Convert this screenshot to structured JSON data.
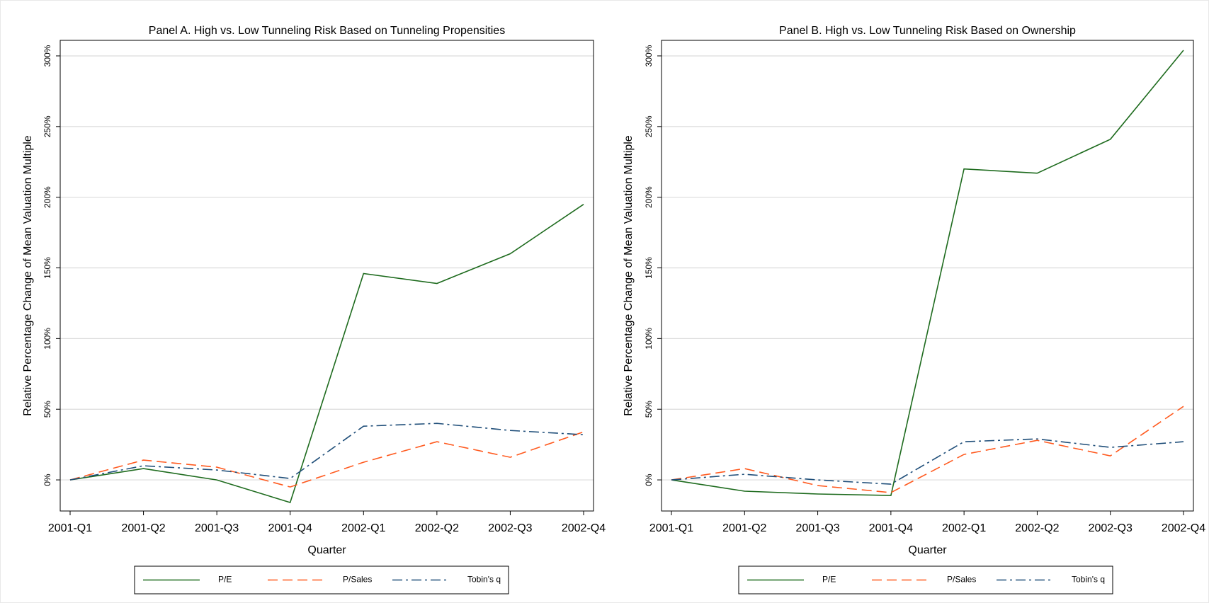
{
  "chart_data": [
    {
      "type": "line",
      "title": "Panel A. High vs. Low Tunneling Risk Based on Tunneling Propensities",
      "x_label": "Quarter",
      "y_label": "Relative Percentage Change of Mean Valuation Multiple",
      "categories": [
        "2001-Q1",
        "2001-Q2",
        "2001-Q3",
        "2001-Q4",
        "2002-Q1",
        "2002-Q2",
        "2002-Q3",
        "2002-Q4"
      ],
      "series": [
        {
          "name": "P/E",
          "color": "#1e6b1e",
          "dash": "solid",
          "values": [
            0,
            8,
            0,
            -16,
            146,
            139,
            160,
            195
          ]
        },
        {
          "name": "P/Sales",
          "color": "#ff5a1f",
          "dash": "dash",
          "values": [
            0,
            14,
            9,
            -5,
            12.5,
            27,
            16,
            34
          ]
        },
        {
          "name": "Tobin's q",
          "color": "#1f4e79",
          "dash": "dashdot",
          "values": [
            0,
            10,
            7,
            1,
            38,
            40,
            35,
            32
          ]
        }
      ],
      "ylim": [
        -22,
        311
      ],
      "yticks": [
        {
          "value": 0,
          "label": "0%"
        },
        {
          "value": 50,
          "label": "50%"
        },
        {
          "value": 100,
          "label": "100%"
        },
        {
          "value": 150,
          "label": "150%"
        },
        {
          "value": 200,
          "label": "200%"
        },
        {
          "value": 250,
          "label": "250%"
        },
        {
          "value": 300,
          "label": "300%"
        }
      ],
      "grid": true,
      "legend": "bottom"
    },
    {
      "type": "line",
      "title": "Panel B. High vs. Low Tunneling Risk Based on Ownership",
      "x_label": "Quarter",
      "y_label": "Relative Percentage Change of Mean Valuation Multiple",
      "categories": [
        "2001-Q1",
        "2001-Q2",
        "2001-Q3",
        "2001-Q4",
        "2002-Q1",
        "2002-Q2",
        "2002-Q3",
        "2002-Q4"
      ],
      "series": [
        {
          "name": "P/E",
          "color": "#1e6b1e",
          "dash": "solid",
          "values": [
            0,
            -8,
            -10,
            -11,
            220,
            217,
            241,
            304
          ]
        },
        {
          "name": "P/Sales",
          "color": "#ff5a1f",
          "dash": "dash",
          "values": [
            0,
            8,
            -4,
            -9,
            18,
            28,
            17,
            52
          ]
        },
        {
          "name": "Tobin's q",
          "color": "#1f4e79",
          "dash": "dashdot",
          "values": [
            0,
            4,
            0,
            -3,
            27,
            29,
            23,
            27
          ]
        }
      ],
      "ylim": [
        -22,
        311
      ],
      "yticks": [
        {
          "value": 0,
          "label": "0%"
        },
        {
          "value": 50,
          "label": "50%"
        },
        {
          "value": 100,
          "label": "100%"
        },
        {
          "value": 150,
          "label": "150%"
        },
        {
          "value": 200,
          "label": "200%"
        },
        {
          "value": 250,
          "label": "250%"
        },
        {
          "value": 300,
          "label": "300%"
        }
      ],
      "grid": true,
      "legend": "bottom"
    }
  ]
}
